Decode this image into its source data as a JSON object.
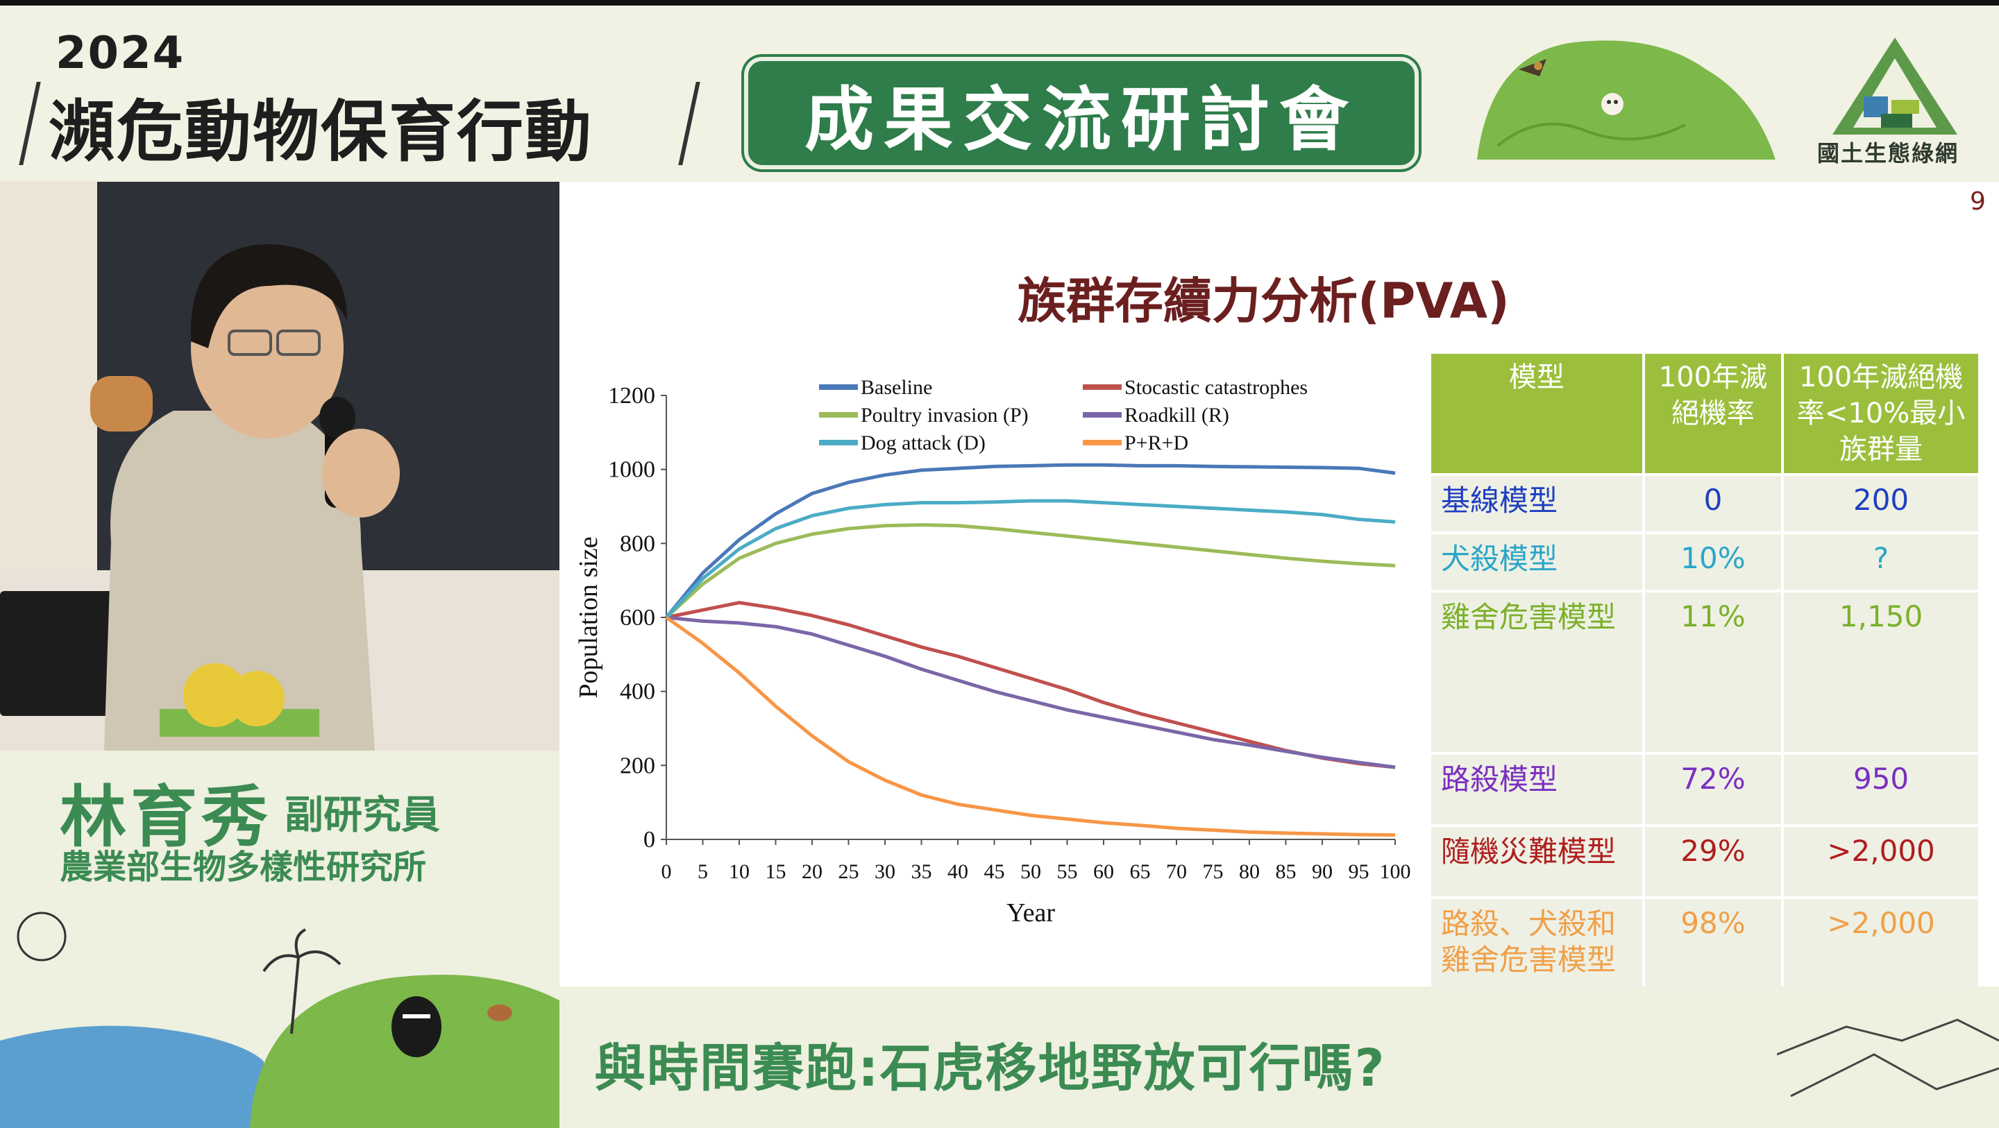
{
  "header": {
    "year": "2024",
    "event": "瀕危動物保育行動",
    "banner": "成果交流研討會",
    "org_logo_text": "國土生態綠網"
  },
  "speaker": {
    "name": "林育秀",
    "title": "副研究員",
    "organization": "農業部生物多樣性研究所"
  },
  "slide": {
    "page_number": "9",
    "title": "族群存續力分析(PVA)",
    "footer": "與時間賽跑:石虎移地野放可行嗎?"
  },
  "table": {
    "headers": [
      "模型",
      "100年滅絕機率",
      "100年滅絕機率<10%最小族群量"
    ],
    "rows": [
      {
        "model": "基線模型",
        "prob": "0",
        "min_pop": "200",
        "color": "#1f3fbf"
      },
      {
        "model": "犬殺模型",
        "prob": "10%",
        "min_pop": "?",
        "color": "#2aa6c8"
      },
      {
        "model": "雞舍危害模型",
        "prob": "11%",
        "min_pop": "1,150",
        "color": "#7cb02a"
      },
      {
        "model": "路殺模型",
        "prob": "72%",
        "min_pop": "950",
        "color": "#7a2fc0"
      },
      {
        "model": "隨機災難模型",
        "prob": "29%",
        "min_pop": ">2,000",
        "color": "#b01e1e"
      },
      {
        "model": "路殺、犬殺和雞舍危害模型",
        "prob": "98%",
        "min_pop": ">2,000",
        "color": "#f0a048"
      }
    ]
  },
  "chart_data": {
    "type": "line",
    "title": "",
    "xlabel": "Year",
    "ylabel": "Population size",
    "xlim": [
      0,
      100
    ],
    "ylim": [
      0,
      1200
    ],
    "xticks": [
      0,
      5,
      10,
      15,
      20,
      25,
      30,
      35,
      40,
      45,
      50,
      55,
      60,
      65,
      70,
      75,
      80,
      85,
      90,
      95,
      100
    ],
    "yticks": [
      0,
      200,
      400,
      600,
      800,
      1000,
      1200
    ],
    "legend_position": "top",
    "grid": false,
    "x": [
      0,
      5,
      10,
      15,
      20,
      25,
      30,
      35,
      40,
      45,
      50,
      55,
      60,
      65,
      70,
      75,
      80,
      85,
      90,
      95,
      100
    ],
    "series": [
      {
        "name": "Baseline",
        "color": "#4a78b8",
        "values": [
          600,
          720,
          810,
          880,
          935,
          965,
          985,
          998,
          1003,
          1008,
          1010,
          1012,
          1012,
          1010,
          1010,
          1008,
          1007,
          1006,
          1005,
          1003,
          990
        ]
      },
      {
        "name": "Stocastic catastrophes",
        "color": "#c0504d",
        "values": [
          600,
          620,
          640,
          625,
          605,
          580,
          550,
          520,
          495,
          465,
          435,
          405,
          370,
          340,
          315,
          290,
          265,
          240,
          220,
          205,
          195
        ]
      },
      {
        "name": "Poultry invasion (P)",
        "color": "#9bbb59",
        "values": [
          600,
          690,
          760,
          800,
          825,
          840,
          848,
          850,
          848,
          840,
          830,
          820,
          810,
          800,
          790,
          780,
          770,
          760,
          752,
          745,
          740
        ]
      },
      {
        "name": "Roadkill (R)",
        "color": "#7a66a8",
        "values": [
          600,
          590,
          585,
          575,
          555,
          525,
          495,
          460,
          430,
          400,
          375,
          350,
          330,
          310,
          290,
          270,
          255,
          238,
          222,
          208,
          195
        ]
      },
      {
        "name": "Dog attack (D)",
        "color": "#4bacc6",
        "values": [
          600,
          705,
          785,
          840,
          875,
          895,
          905,
          910,
          910,
          912,
          915,
          915,
          910,
          905,
          900,
          895,
          890,
          885,
          878,
          865,
          858
        ]
      },
      {
        "name": "P+R+D",
        "color": "#f79646",
        "values": [
          600,
          530,
          450,
          360,
          280,
          210,
          160,
          120,
          95,
          80,
          65,
          55,
          45,
          38,
          30,
          25,
          20,
          17,
          15,
          13,
          12
        ]
      }
    ]
  }
}
